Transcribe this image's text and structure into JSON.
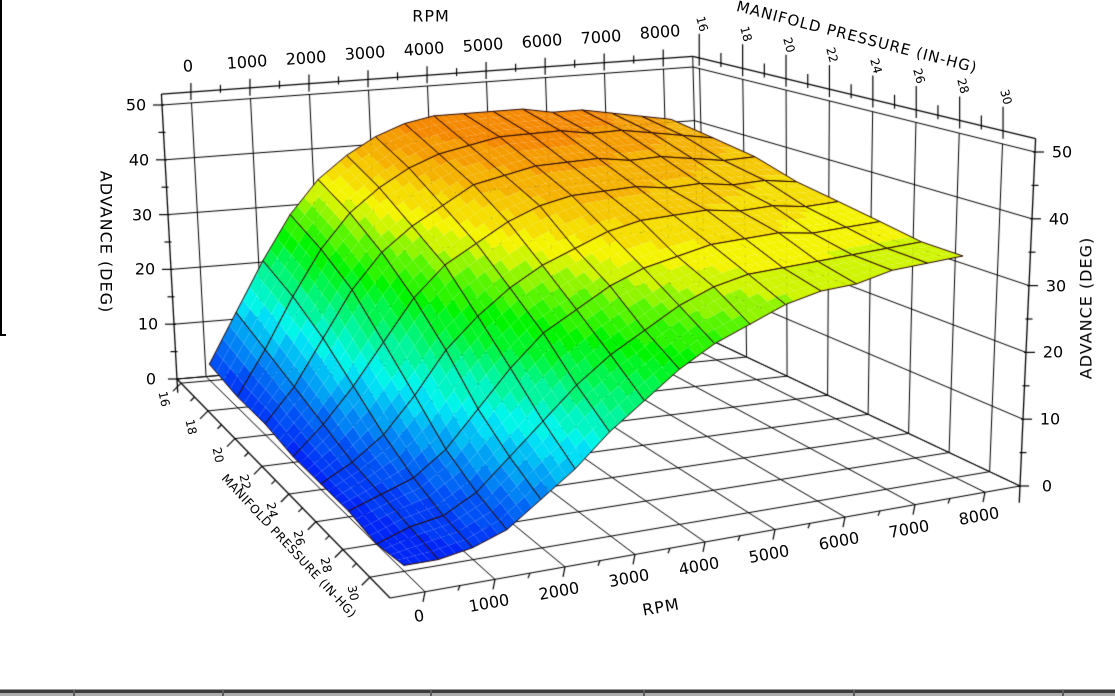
{
  "axes": {
    "rpm_top": {
      "title": "RPM",
      "tick_labels": [
        "0",
        "1000",
        "2000",
        "3000",
        "4000",
        "5000",
        "6000",
        "7000",
        "8000"
      ]
    },
    "rpm_bottom": {
      "title": "RPM",
      "tick_labels": [
        "0",
        "1000",
        "2000",
        "3000",
        "4000",
        "5000",
        "6000",
        "7000",
        "8000"
      ]
    },
    "mp_top": {
      "title": "MANIFOLD PRESSURE (IN-HG)",
      "tick_labels": [
        "16",
        "18",
        "20",
        "22",
        "24",
        "26",
        "28",
        "30"
      ]
    },
    "mp_left": {
      "title": "MANIFOLD PRESSURE (IN-HG)",
      "tick_labels": [
        "16",
        "18",
        "20",
        "22",
        "24",
        "26",
        "28",
        "30"
      ]
    },
    "advance_left": {
      "title": "ADVANCE (DEG)",
      "tick_labels": [
        "0",
        "10",
        "20",
        "30",
        "40",
        "50"
      ]
    },
    "advance_right": {
      "title": "ADVANCE (DEG)",
      "tick_labels": [
        "0",
        "10",
        "20",
        "30",
        "40",
        "50"
      ]
    }
  },
  "chart_data": {
    "type": "surface",
    "title": "",
    "xlabel": "RPM",
    "ylabel": "MANIFOLD PRESSURE (IN-HG)",
    "zlabel": "ADVANCE (DEG)",
    "x_rpm": [
      0,
      500,
      1000,
      1500,
      2000,
      2500,
      3000,
      3500,
      4000,
      4500,
      5000,
      5500,
      6000,
      6500,
      7000,
      7500,
      8000
    ],
    "y_manifold_pressure": [
      16,
      18,
      20,
      22,
      24,
      26,
      28,
      30
    ],
    "z_advance_rows_by_pressure": [
      [
        3,
        12,
        21,
        29,
        35,
        39,
        42,
        44,
        45,
        45,
        45,
        45,
        44,
        44,
        43,
        42,
        41
      ],
      [
        2,
        10,
        19,
        27,
        33,
        37,
        40,
        42,
        43,
        44,
        44,
        44,
        43,
        43,
        42,
        41,
        40
      ],
      [
        2,
        8,
        16,
        24,
        30,
        34,
        37,
        40,
        41,
        42,
        42,
        42,
        41,
        41,
        40,
        39,
        39
      ],
      [
        1,
        6,
        12,
        19,
        26,
        31,
        34,
        37,
        39,
        40,
        40,
        40,
        39,
        39,
        38,
        38,
        37
      ],
      [
        1,
        4,
        8,
        14,
        21,
        26,
        30,
        33,
        35,
        37,
        38,
        38,
        38,
        37,
        37,
        36,
        36
      ],
      [
        1,
        3,
        5,
        9,
        15,
        21,
        26,
        29,
        32,
        34,
        35,
        36,
        36,
        36,
        35,
        35,
        35
      ],
      [
        0,
        2,
        3,
        6,
        11,
        16,
        21,
        25,
        28,
        31,
        33,
        34,
        34,
        34,
        34,
        34,
        34
      ],
      [
        1,
        1,
        2,
        4,
        8,
        12,
        17,
        21,
        25,
        28,
        30,
        32,
        33,
        33,
        34,
        34,
        34
      ]
    ],
    "x_range": [
      0,
      8000
    ],
    "y_range": [
      16,
      30
    ],
    "z_range": [
      0,
      50
    ],
    "grid": true,
    "colormap": "rainbow",
    "colormap_hue_stops": [
      [
        0,
        233
      ],
      [
        6,
        216
      ],
      [
        12,
        192
      ],
      [
        16,
        174
      ],
      [
        22,
        142
      ],
      [
        26,
        120
      ],
      [
        30,
        97
      ],
      [
        34,
        63
      ],
      [
        36,
        57
      ],
      [
        40,
        45
      ],
      [
        45,
        31
      ]
    ],
    "mesh_line_color": "#2a0805",
    "frame_line_color": "#000000"
  },
  "decor": {
    "bottom_bar_separators": [
      73,
      222,
      430,
      643,
      853,
      1062
    ]
  }
}
